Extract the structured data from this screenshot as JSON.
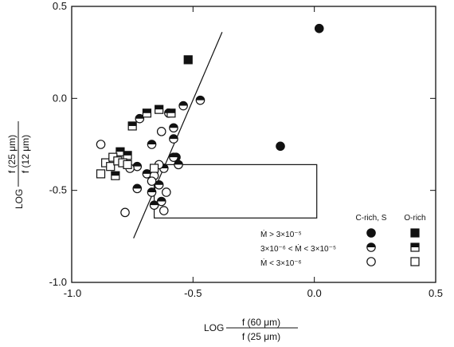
{
  "chart_data": {
    "type": "scatter",
    "xlim": [
      -1.0,
      0.5
    ],
    "ylim": [
      -1.0,
      0.5
    ],
    "x_ticks": [
      "-1.0",
      "-0.5",
      "0.0",
      "0.5"
    ],
    "y_ticks": [
      "-1.0",
      "-0.5",
      "0.0",
      "0.5"
    ],
    "x_axis_label": {
      "prefix": "LOG",
      "numerator": "f (60 μm)",
      "denominator": "f (25 μm)"
    },
    "y_axis_label": {
      "prefix": "LOG",
      "numerator": "f (25 μm)",
      "denominator": "f (12 μm)"
    },
    "legend": {
      "placement": "bottom-right",
      "column_headers": [
        "C-rich, S",
        "O-rich"
      ],
      "rows": [
        {
          "label": "Ṁ > 3×10⁻⁵",
          "fill": "full"
        },
        {
          "label": "3×10⁻⁶ < Ṁ < 3×10⁻⁵",
          "fill": "half"
        },
        {
          "label": "Ṁ < 3×10⁻⁶",
          "fill": "empty"
        }
      ]
    },
    "grid": false,
    "colors": {
      "ink": "#111111",
      "background": "#ffffff"
    },
    "series": [
      {
        "marker": "circle",
        "fill": "full",
        "points": [
          {
            "x": 0.02,
            "y": 0.38
          },
          {
            "x": -0.14,
            "y": -0.26
          },
          {
            "x": -0.57,
            "y": -0.32
          }
        ]
      },
      {
        "marker": "square",
        "fill": "full",
        "points": [
          {
            "x": -0.52,
            "y": 0.21
          }
        ]
      },
      {
        "marker": "circle",
        "fill": "half",
        "points": [
          {
            "x": -0.47,
            "y": -0.01
          },
          {
            "x": -0.54,
            "y": -0.04
          },
          {
            "x": -0.6,
            "y": -0.08
          },
          {
            "x": -0.72,
            "y": -0.11
          },
          {
            "x": -0.58,
            "y": -0.16
          },
          {
            "x": -0.58,
            "y": -0.22
          },
          {
            "x": -0.67,
            "y": -0.25
          },
          {
            "x": -0.58,
            "y": -0.32
          },
          {
            "x": -0.73,
            "y": -0.37
          },
          {
            "x": -0.62,
            "y": -0.38
          },
          {
            "x": -0.69,
            "y": -0.41
          },
          {
            "x": -0.56,
            "y": -0.36
          },
          {
            "x": -0.64,
            "y": -0.47
          },
          {
            "x": -0.73,
            "y": -0.49
          },
          {
            "x": -0.67,
            "y": -0.51
          },
          {
            "x": -0.63,
            "y": -0.56
          },
          {
            "x": -0.66,
            "y": -0.58
          }
        ]
      },
      {
        "marker": "square",
        "fill": "half",
        "points": [
          {
            "x": -0.64,
            "y": -0.06
          },
          {
            "x": -0.59,
            "y": -0.08
          },
          {
            "x": -0.69,
            "y": -0.08
          },
          {
            "x": -0.75,
            "y": -0.15
          },
          {
            "x": -0.8,
            "y": -0.29
          },
          {
            "x": -0.77,
            "y": -0.31
          },
          {
            "x": -0.82,
            "y": -0.42
          }
        ]
      },
      {
        "marker": "circle",
        "fill": "empty",
        "points": [
          {
            "x": -0.88,
            "y": -0.25
          },
          {
            "x": -0.63,
            "y": -0.18
          },
          {
            "x": -0.76,
            "y": -0.38
          },
          {
            "x": -0.64,
            "y": -0.36
          },
          {
            "x": -0.66,
            "y": -0.42
          },
          {
            "x": -0.67,
            "y": -0.45
          },
          {
            "x": -0.61,
            "y": -0.51
          },
          {
            "x": -0.78,
            "y": -0.62
          },
          {
            "x": -0.62,
            "y": -0.61
          }
        ]
      },
      {
        "marker": "square",
        "fill": "empty",
        "points": [
          {
            "x": -0.88,
            "y": -0.41
          },
          {
            "x": -0.86,
            "y": -0.35
          },
          {
            "x": -0.84,
            "y": -0.37
          },
          {
            "x": -0.83,
            "y": -0.32
          },
          {
            "x": -0.81,
            "y": -0.34
          },
          {
            "x": -0.79,
            "y": -0.35
          },
          {
            "x": -0.77,
            "y": -0.36
          },
          {
            "x": -0.66,
            "y": -0.38
          }
        ]
      }
    ],
    "line": {
      "points": [
        [
          -0.745,
          -0.76
        ],
        [
          -0.38,
          0.36
        ]
      ]
    },
    "box": {
      "x": [
        -0.66,
        0.01
      ],
      "y": [
        -0.65,
        -0.36
      ]
    }
  }
}
